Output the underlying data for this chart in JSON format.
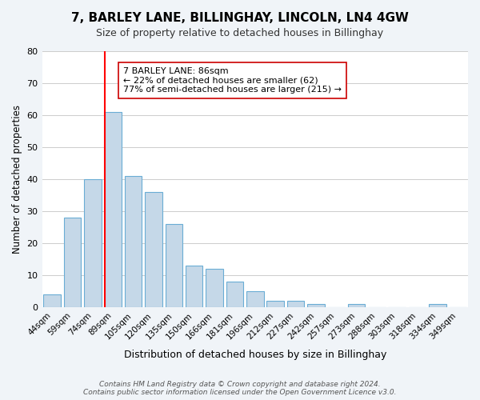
{
  "title": "7, BARLEY LANE, BILLINGHAY, LINCOLN, LN4 4GW",
  "subtitle": "Size of property relative to detached houses in Billinghay",
  "xlabel": "Distribution of detached houses by size in Billinghay",
  "ylabel": "Number of detached properties",
  "bar_labels": [
    "44sqm",
    "59sqm",
    "74sqm",
    "89sqm",
    "105sqm",
    "120sqm",
    "135sqm",
    "150sqm",
    "166sqm",
    "181sqm",
    "196sqm",
    "212sqm",
    "227sqm",
    "242sqm",
    "257sqm",
    "273sqm",
    "288sqm",
    "303sqm",
    "318sqm",
    "334sqm",
    "349sqm"
  ],
  "bar_values": [
    4,
    28,
    40,
    61,
    41,
    36,
    26,
    13,
    12,
    8,
    5,
    2,
    2,
    1,
    0,
    1,
    0,
    0,
    0,
    1,
    0
  ],
  "bar_color": "#c5d8e8",
  "bar_edgecolor": "#6aadd5",
  "ylim": [
    0,
    80
  ],
  "yticks": [
    0,
    10,
    20,
    30,
    40,
    50,
    60,
    70,
    80
  ],
  "property_line_x": 3,
  "property_line_color": "red",
  "annotation_text": "7 BARLEY LANE: 86sqm\n← 22% of detached houses are smaller (62)\n77% of semi-detached houses are larger (215) →",
  "annotation_box_color": "#ffffff",
  "annotation_box_edgecolor": "#cc0000",
  "footer_text": "Contains HM Land Registry data © Crown copyright and database right 2024.\nContains public sector information licensed under the Open Government Licence v3.0.",
  "background_color": "#f0f4f8",
  "plot_background_color": "#ffffff"
}
